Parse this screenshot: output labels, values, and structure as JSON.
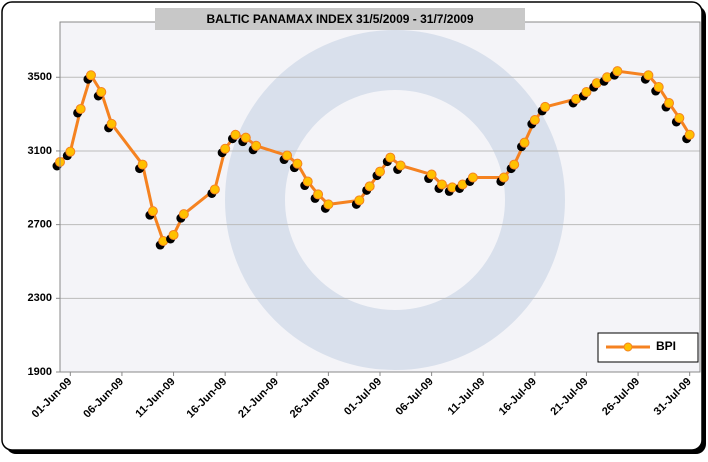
{
  "chart_data": {
    "type": "line",
    "title": "BALTIC PANAMAX INDEX 31/5/2009 - 31/7/2009",
    "x": [
      "2009-05-31",
      "2009-06-01",
      "2009-06-02",
      "2009-06-03",
      "2009-06-04",
      "2009-06-05",
      "2009-06-08",
      "2009-06-09",
      "2009-06-10",
      "2009-06-11",
      "2009-06-12",
      "2009-06-15",
      "2009-06-16",
      "2009-06-17",
      "2009-06-18",
      "2009-06-19",
      "2009-06-22",
      "2009-06-23",
      "2009-06-24",
      "2009-06-25",
      "2009-06-26",
      "2009-06-29",
      "2009-06-30",
      "2009-07-01",
      "2009-07-02",
      "2009-07-03",
      "2009-07-06",
      "2009-07-07",
      "2009-07-08",
      "2009-07-09",
      "2009-07-10",
      "2009-07-13",
      "2009-07-14",
      "2009-07-15",
      "2009-07-16",
      "2009-07-17",
      "2009-07-20",
      "2009-07-21",
      "2009-07-22",
      "2009-07-23",
      "2009-07-24",
      "2009-07-27",
      "2009-07-28",
      "2009-07-29",
      "2009-07-30",
      "2009-07-31"
    ],
    "series": [
      {
        "name": "BPI",
        "color": "#f58220",
        "values": [
          3040,
          3096,
          3328,
          3511,
          3420,
          3247,
          3026,
          2773,
          2611,
          2644,
          2757,
          2891,
          3112,
          3188,
          3172,
          3128,
          3075,
          3031,
          2934,
          2864,
          2810,
          2832,
          2908,
          2988,
          3064,
          3021,
          2972,
          2918,
          2902,
          2918,
          2956,
          2956,
          3026,
          3145,
          3268,
          3339,
          3382,
          3420,
          3468,
          3500,
          3533,
          3511,
          3447,
          3360,
          3279,
          3188
        ]
      }
    ],
    "xlim": [
      "2009-05-31",
      "2009-08-01"
    ],
    "xticks": [
      {
        "value": "2009-06-01",
        "label": "01-Jun-09"
      },
      {
        "value": "2009-06-06",
        "label": "06-Jun-09"
      },
      {
        "value": "2009-06-11",
        "label": "11-Jun-09"
      },
      {
        "value": "2009-06-16",
        "label": "16-Jun-09"
      },
      {
        "value": "2009-06-21",
        "label": "21-Jun-09"
      },
      {
        "value": "2009-06-26",
        "label": "26-Jun-09"
      },
      {
        "value": "2009-07-01",
        "label": "01-Jul-09"
      },
      {
        "value": "2009-07-06",
        "label": "06-Jul-09"
      },
      {
        "value": "2009-07-11",
        "label": "11-Jul-09"
      },
      {
        "value": "2009-07-16",
        "label": "16-Jul-09"
      },
      {
        "value": "2009-07-21",
        "label": "21-Jul-09"
      },
      {
        "value": "2009-07-26",
        "label": "26-Jul-09"
      },
      {
        "value": "2009-07-31",
        "label": "31-Jul-09"
      }
    ],
    "ylim": [
      1900,
      3800
    ],
    "yticks": [
      1900,
      2300,
      2700,
      3100,
      3500
    ],
    "grid": true,
    "legend": "lower right"
  }
}
